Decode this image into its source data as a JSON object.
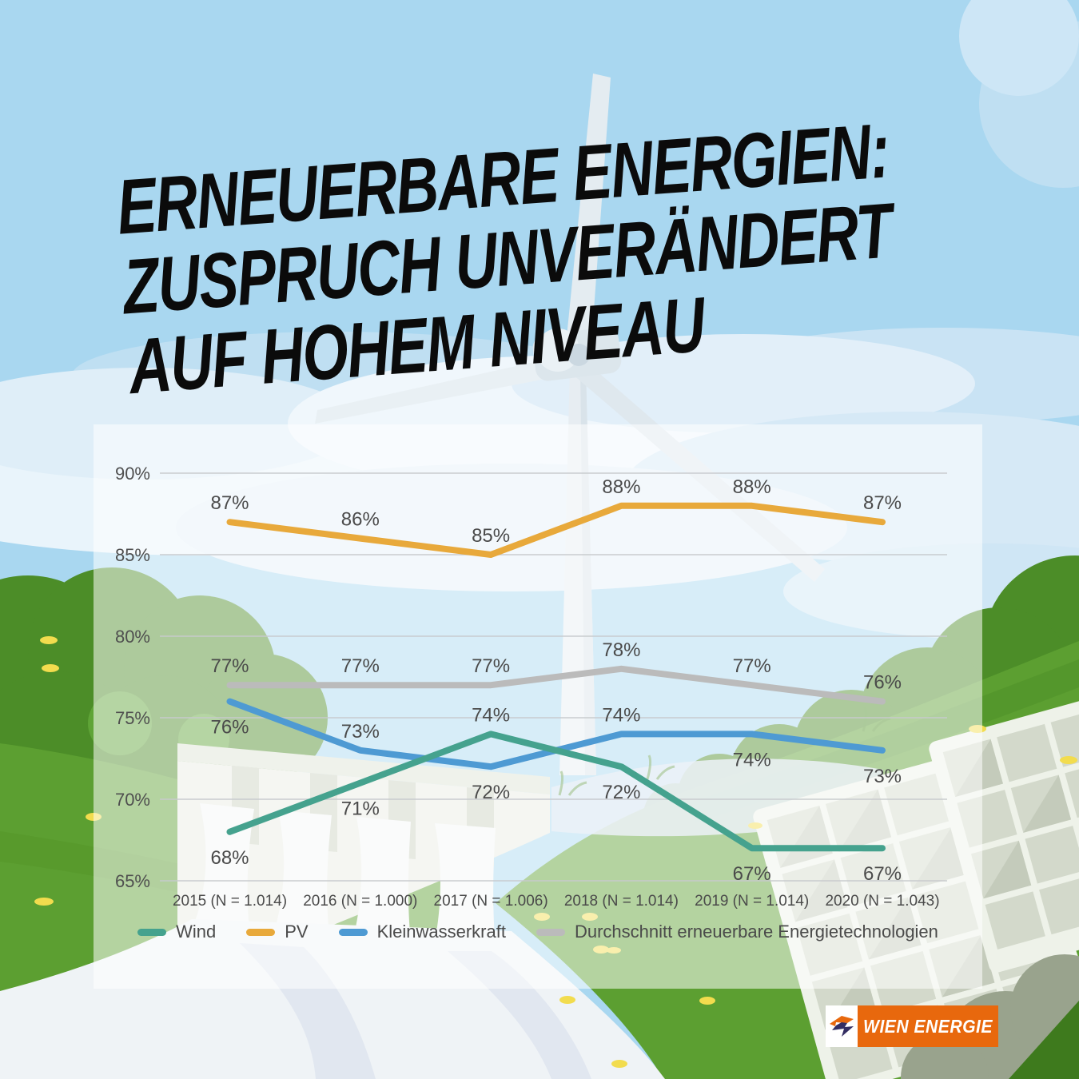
{
  "title": {
    "line1": "ERNEUERBARE ENERGIEN:",
    "line2": "ZUSPRUCH UNVERÄNDERT",
    "line3": "AUF HOHEM NIVEAU"
  },
  "logo": {
    "brand": "WIEN ENERGIE"
  },
  "colors": {
    "sky": "#A9D7F0",
    "brand_orange": "#E8680D",
    "brand_navy": "#332E63",
    "text_dark": "#4A4A4A",
    "grid": "#C7CACD",
    "panel_overlay": "rgba(255,255,255,0.54)"
  },
  "chart_data": {
    "type": "line",
    "categories": [
      "2015 (N = 1.014)",
      "2016 (N = 1.000)",
      "2017 (N = 1.006)",
      "2018 (N = 1.014)",
      "2019 (N = 1.014)",
      "2020 (N = 1.043)"
    ],
    "series": [
      {
        "name": "Wind",
        "color": "#45A28E",
        "values": [
          68,
          71,
          74,
          72,
          67,
          67
        ],
        "label_positions": [
          "below",
          "below",
          "above",
          "below",
          "below",
          "below"
        ]
      },
      {
        "name": "PV",
        "color": "#E8A93B",
        "values": [
          87,
          86,
          85,
          88,
          88,
          87
        ],
        "label_positions": [
          "above",
          "above",
          "above",
          "above",
          "above",
          "above"
        ]
      },
      {
        "name": "Kleinwasserkraft",
        "color": "#4E9AD3",
        "values": [
          76,
          73,
          72,
          74,
          74,
          73
        ],
        "label_positions": [
          "below",
          "above",
          "below",
          "above",
          "below",
          "below"
        ]
      },
      {
        "name": "Durchschnitt erneuerbare Energietechnologien",
        "color": "#BBBBBB",
        "values": [
          77,
          77,
          77,
          78,
          77,
          76
        ],
        "label_positions": [
          "above",
          "above",
          "above",
          "above",
          "above",
          "above"
        ]
      }
    ],
    "ylim": [
      65,
      90
    ],
    "yticks": [
      90,
      85,
      80,
      75,
      70,
      65
    ],
    "value_suffix": "%",
    "grid": true,
    "legend_position": "bottom"
  }
}
